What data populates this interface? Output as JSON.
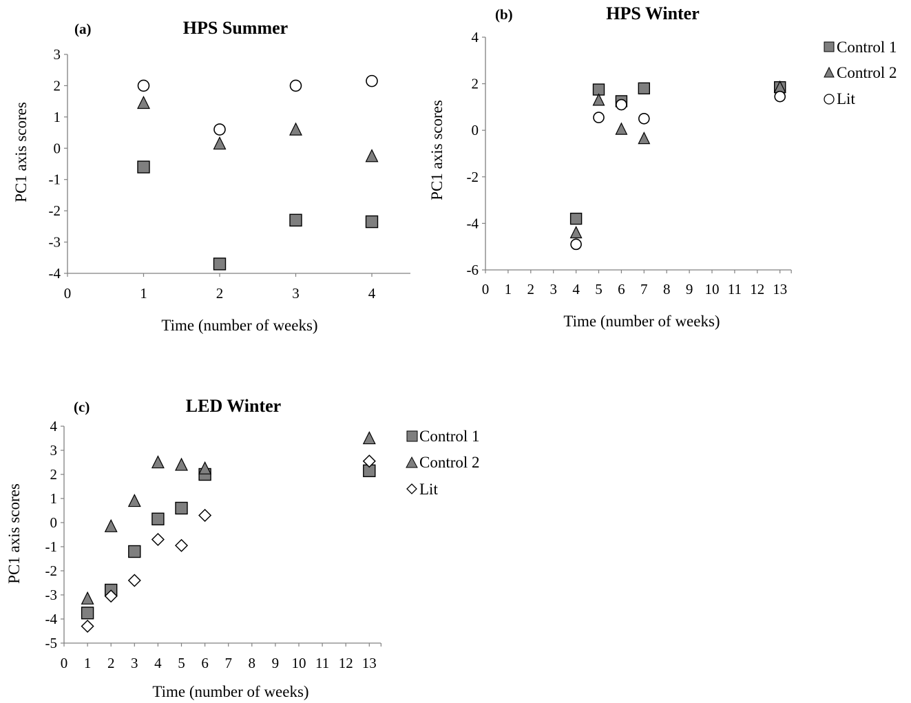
{
  "chart_data": [
    {
      "type": "scatter",
      "panel_label": "(a)",
      "title": "HPS Summer",
      "xlabel": "Time (number of weeks)",
      "ylabel": "PC1 axis scores",
      "x_ticks": [
        "0",
        "1",
        "2",
        "3",
        "4"
      ],
      "y_ticks": [
        "3",
        "2",
        "1",
        "0",
        "-1",
        "-2",
        "-3",
        "-4"
      ],
      "xlim": [
        0,
        4.5
      ],
      "ylim": [
        -4,
        3
      ],
      "legend": false,
      "series": [
        {
          "name": "Control 1",
          "marker": "square",
          "color": "#7f7f7f",
          "x": [
            1,
            2,
            3,
            4
          ],
          "y": [
            -0.6,
            -3.7,
            -2.3,
            -2.35
          ]
        },
        {
          "name": "Control 2",
          "marker": "triangle",
          "color": "#7f7f7f",
          "x": [
            1,
            2,
            3,
            4
          ],
          "y": [
            1.45,
            0.15,
            0.6,
            -0.25
          ]
        },
        {
          "name": "Lit",
          "marker": "circle",
          "color": "#ffffff",
          "x": [
            1,
            2,
            3,
            4
          ],
          "y": [
            2.0,
            0.6,
            2.0,
            2.15
          ]
        }
      ]
    },
    {
      "type": "scatter",
      "panel_label": "(b)",
      "title": "HPS Winter",
      "xlabel": "Time (number of weeks)",
      "ylabel": "PC1 axis scores",
      "x_ticks": [
        "0",
        "1",
        "2",
        "3",
        "4",
        "5",
        "6",
        "7",
        "8",
        "9",
        "10",
        "11",
        "12",
        "13"
      ],
      "y_ticks": [
        "4",
        "2",
        "0",
        "-2",
        "-4",
        "-6"
      ],
      "ylim": [
        -6,
        4
      ],
      "legend": true,
      "legend_position": "right",
      "legend_entries": [
        "Control 1",
        "Control 2",
        "Lit"
      ],
      "series": [
        {
          "name": "Control 1",
          "marker": "square",
          "color": "#7f7f7f",
          "x": [
            4,
            5,
            6,
            7,
            13
          ],
          "y": [
            -3.8,
            1.75,
            1.25,
            1.8,
            1.85
          ]
        },
        {
          "name": "Control 2",
          "marker": "triangle",
          "color": "#7f7f7f",
          "x": [
            4,
            5,
            6,
            7,
            13
          ],
          "y": [
            -4.4,
            1.3,
            0.05,
            -0.35,
            1.85
          ]
        },
        {
          "name": "Lit",
          "marker": "circle",
          "color": "#ffffff",
          "x": [
            4,
            5,
            6,
            7,
            13
          ],
          "y": [
            -4.9,
            0.55,
            1.1,
            0.5,
            1.45
          ]
        }
      ]
    },
    {
      "type": "scatter",
      "panel_label": "(c)",
      "title": "LED Winter",
      "xlabel": "Time (number of weeks)",
      "ylabel": "PC1 axis scores",
      "x_ticks": [
        "0",
        "1",
        "2",
        "3",
        "4",
        "5",
        "6",
        "7",
        "8",
        "9",
        "10",
        "11",
        "12",
        "13"
      ],
      "y_ticks": [
        "4",
        "3",
        "2",
        "1",
        "0",
        "-1",
        "-2",
        "-3",
        "-4",
        "-5"
      ],
      "ylim": [
        -5,
        4
      ],
      "legend": true,
      "legend_position": "right",
      "legend_entries": [
        "Control 1",
        "Control 2",
        "Lit"
      ],
      "series": [
        {
          "name": "Control 1",
          "marker": "square",
          "color": "#7f7f7f",
          "x": [
            1,
            2,
            3,
            4,
            5,
            6,
            13
          ],
          "y": [
            -3.75,
            -2.8,
            -1.2,
            0.15,
            0.6,
            2.0,
            2.15
          ]
        },
        {
          "name": "Control 2",
          "marker": "triangle",
          "color": "#7f7f7f",
          "x": [
            1,
            2,
            3,
            4,
            5,
            6,
            13
          ],
          "y": [
            -3.15,
            -0.15,
            0.9,
            2.5,
            2.4,
            2.25,
            3.5
          ]
        },
        {
          "name": "Lit",
          "marker": "diamond",
          "color": "#ffffff",
          "x": [
            1,
            2,
            3,
            4,
            5,
            6,
            13
          ],
          "y": [
            -4.3,
            -3.05,
            -2.4,
            -0.7,
            -0.95,
            0.3,
            2.55
          ]
        }
      ]
    }
  ]
}
